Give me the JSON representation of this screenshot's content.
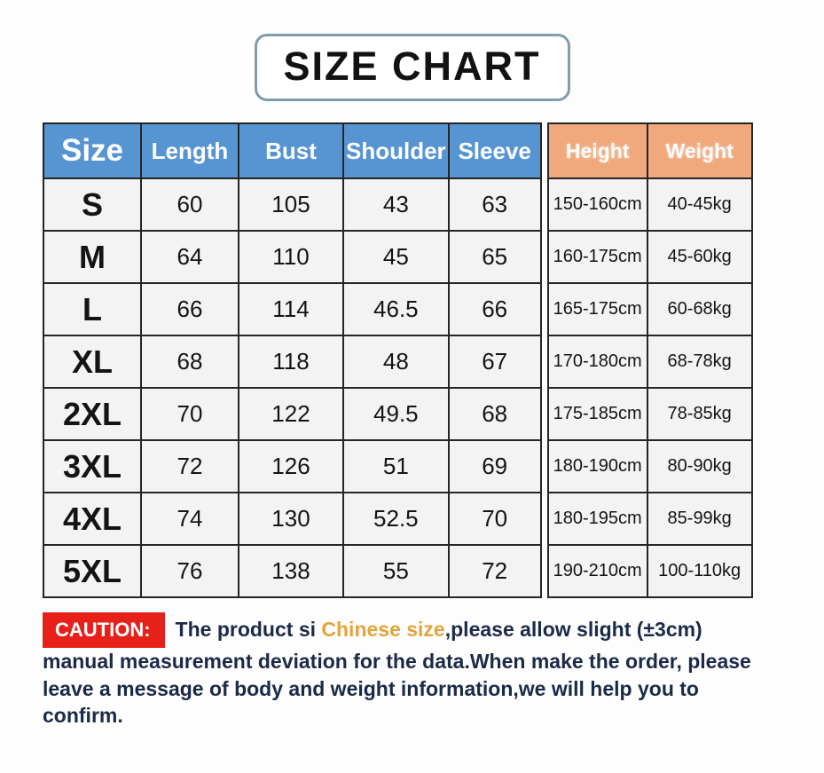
{
  "title": "SIZE CHART",
  "table": {
    "headers": [
      "Size",
      "Length",
      "Bust",
      "Shoulder",
      "Sleeve",
      "Height",
      "Weight"
    ],
    "rows": [
      {
        "size": "S",
        "length": "60",
        "bust": "105",
        "shoulder": "43",
        "sleeve": "63",
        "height": "150-160cm",
        "weight": "40-45kg"
      },
      {
        "size": "M",
        "length": "64",
        "bust": "110",
        "shoulder": "45",
        "sleeve": "65",
        "height": "160-175cm",
        "weight": "45-60kg"
      },
      {
        "size": "L",
        "length": "66",
        "bust": "114",
        "shoulder": "46.5",
        "sleeve": "66",
        "height": "165-175cm",
        "weight": "60-68kg"
      },
      {
        "size": "XL",
        "length": "68",
        "bust": "118",
        "shoulder": "48",
        "sleeve": "67",
        "height": "170-180cm",
        "weight": "68-78kg"
      },
      {
        "size": "2XL",
        "length": "70",
        "bust": "122",
        "shoulder": "49.5",
        "sleeve": "68",
        "height": "175-185cm",
        "weight": "78-85kg"
      },
      {
        "size": "3XL",
        "length": "72",
        "bust": "126",
        "shoulder": "51",
        "sleeve": "69",
        "height": "180-190cm",
        "weight": "80-90kg"
      },
      {
        "size": "4XL",
        "length": "74",
        "bust": "130",
        "shoulder": "52.5",
        "sleeve": "70",
        "height": "180-195cm",
        "weight": "85-99kg"
      },
      {
        "size": "5XL",
        "length": "76",
        "bust": "138",
        "shoulder": "55",
        "sleeve": "72",
        "height": "190-210cm",
        "weight": "100-110kg"
      }
    ]
  },
  "caution": {
    "label": "CAUTION:",
    "text_before": "The product si ",
    "highlight": "Chinese size",
    "text_after": ",please allow slight (±3cm) manual measurement deviation for the data.When make the order, please leave a message of body and weight information,we will help you to confirm."
  },
  "colors": {
    "header_blue": "#5794d2",
    "header_orange": "#f0a87c",
    "cell_background": "#f3f3f3",
    "table_border": "#252525",
    "caution_red": "#e7201a",
    "caution_text_navy": "#1b2a48",
    "highlight_gold": "#e2a43c",
    "title_border": "#7f9dab"
  }
}
